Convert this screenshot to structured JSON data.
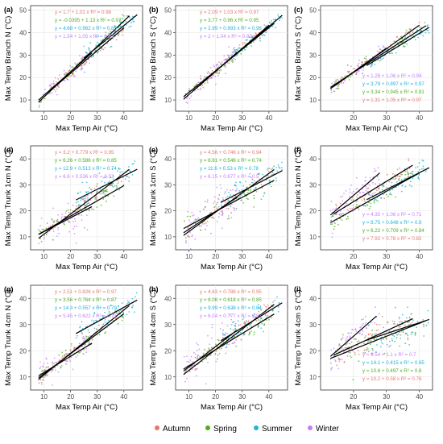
{
  "figure": {
    "legend": [
      {
        "name": "Autumn",
        "color": "#E8766C"
      },
      {
        "name": "Spring",
        "color": "#4DAF1E"
      },
      {
        "name": "Summer",
        "color": "#1FB3D8"
      },
      {
        "name": "Winter",
        "color": "#C77CFF"
      }
    ]
  },
  "chart_data": [
    {
      "type": "scatter",
      "panel": "(a)",
      "xlabel": "Max Temp Air (°C)",
      "ylabel": "Max Temp Branch N (°C)",
      "xlim": [
        5,
        47
      ],
      "ylim": [
        5,
        52
      ],
      "xticks": [
        10,
        20,
        30,
        40
      ],
      "yticks": [
        10,
        20,
        30,
        40,
        50
      ],
      "equations": [
        {
          "season": "Autumn",
          "text": "y = 1.7 + 1.01 x   R² = 0.98",
          "intercept": 1.7,
          "slope": 1.01,
          "r2": 0.98
        },
        {
          "season": "Spring",
          "text": "y = -0.0395 + 1.13 x   R² = 0.97",
          "intercept": -0.0395,
          "slope": 1.13,
          "r2": 0.97
        },
        {
          "season": "Summer",
          "text": "y = 4.68 + 0.962 x   R² = 0.85",
          "intercept": 4.68,
          "slope": 0.962,
          "r2": 0.85
        },
        {
          "season": "Winter",
          "text": "y = 1.54 + 1.05 x   R² = 0.83",
          "intercept": 1.54,
          "slope": 1.05,
          "r2": 0.83
        }
      ],
      "series": [
        {
          "name": "Autumn",
          "x_range": [
            12,
            40
          ]
        },
        {
          "name": "Spring",
          "x_range": [
            8,
            42
          ]
        },
        {
          "name": "Summer",
          "x_range": [
            25,
            45
          ]
        },
        {
          "name": "Winter",
          "x_range": [
            8,
            28
          ]
        }
      ]
    },
    {
      "type": "scatter",
      "panel": "(b)",
      "xlabel": "Max Temp Air (°C)",
      "ylabel": "Max Temp Branch S (°C)",
      "xlim": [
        5,
        47
      ],
      "ylim": [
        5,
        52
      ],
      "xticks": [
        10,
        20,
        30,
        40
      ],
      "yticks": [
        10,
        20,
        30,
        40,
        50
      ],
      "equations": [
        {
          "season": "Autumn",
          "text": "y = 2.09 + 1.03 x   R² = 0.97",
          "intercept": 2.09,
          "slope": 1.03,
          "r2": 0.97
        },
        {
          "season": "Spring",
          "text": "y = 3.77 + 0.96 x   R² = 0.95",
          "intercept": 3.77,
          "slope": 0.96,
          "r2": 0.95
        },
        {
          "season": "Summer",
          "text": "y = 2.99 + 0.993 x   R² = 0.98",
          "intercept": 2.99,
          "slope": 0.993,
          "r2": 0.98
        },
        {
          "season": "Winter",
          "text": "y = 2 + 1.04 x   R² = 0.83",
          "intercept": 2,
          "slope": 1.04,
          "r2": 0.83
        }
      ],
      "series": [
        {
          "name": "Autumn",
          "x_range": [
            12,
            40
          ]
        },
        {
          "name": "Spring",
          "x_range": [
            8,
            42
          ]
        },
        {
          "name": "Summer",
          "x_range": [
            25,
            45
          ]
        },
        {
          "name": "Winter",
          "x_range": [
            8,
            28
          ]
        }
      ]
    },
    {
      "type": "scatter",
      "panel": "(c)",
      "xlabel": "Max Temp Air (°C)",
      "ylabel": "Max Temp Branch S (°C)",
      "xlim": [
        10,
        44
      ],
      "ylim": [
        5,
        52
      ],
      "xticks": [
        20,
        30,
        40
      ],
      "yticks": [
        10,
        20,
        30,
        40,
        50
      ],
      "equations": [
        {
          "season": "Winter",
          "text": "y = 1.28 + 1.06 x   R² = 0.94",
          "intercept": 1.28,
          "slope": 1.06,
          "r2": 0.94
        },
        {
          "season": "Summer",
          "text": "y = 3.79 + 0.897 x   R² = 0.97",
          "intercept": 3.79,
          "slope": 0.897,
          "r2": 0.97
        },
        {
          "season": "Spring",
          "text": "y = 3.34 + 0.945 x   R² = 0.91",
          "intercept": 3.34,
          "slope": 0.945,
          "r2": 0.91
        },
        {
          "season": "Autumn",
          "text": "y = 1.31 + 1.05 x   R² = 0.97",
          "intercept": 1.31,
          "slope": 1.05,
          "r2": 0.97
        }
      ],
      "series": [
        {
          "name": "Autumn",
          "x_range": [
            14,
            40
          ]
        },
        {
          "name": "Spring",
          "x_range": [
            13,
            42
          ]
        },
        {
          "name": "Summer",
          "x_range": [
            24,
            43
          ]
        },
        {
          "name": "Winter",
          "x_range": [
            13,
            30
          ]
        }
      ]
    },
    {
      "type": "scatter",
      "panel": "(d)",
      "xlabel": "Max Temp Air (°C)",
      "ylabel": "Max Temp Trunk 1cm N (°C)",
      "xlim": [
        5,
        47
      ],
      "ylim": [
        5,
        45
      ],
      "xticks": [
        10,
        20,
        30,
        40
      ],
      "yticks": [
        10,
        20,
        30,
        40
      ],
      "equations": [
        {
          "season": "Autumn",
          "text": "y = 3.2 + 0.779 x   R² = 0.95",
          "intercept": 3.2,
          "slope": 0.779,
          "r2": 0.95
        },
        {
          "season": "Spring",
          "text": "y = 6.26 + 0.586 x   R² = 0.85",
          "intercept": 6.26,
          "slope": 0.586,
          "r2": 0.85
        },
        {
          "season": "Summer",
          "text": "y = 12.9 + 0.513 x   R² = 0.74",
          "intercept": 12.9,
          "slope": 0.513,
          "r2": 0.74
        },
        {
          "season": "Winter",
          "text": "y = 6.6 + 0.536 x   R² = 0.53",
          "intercept": 6.6,
          "slope": 0.536,
          "r2": 0.53
        }
      ],
      "series": [
        {
          "name": "Autumn",
          "x_range": [
            8,
            42
          ]
        },
        {
          "name": "Spring",
          "x_range": [
            8,
            40
          ]
        },
        {
          "name": "Summer",
          "x_range": [
            22,
            45
          ]
        },
        {
          "name": "Winter",
          "x_range": [
            8,
            28
          ]
        }
      ]
    },
    {
      "type": "scatter",
      "panel": "(e)",
      "xlabel": "Max Temp Air (°C)",
      "ylabel": "Max Temp Trunk 1cm S (°C)",
      "xlim": [
        5,
        47
      ],
      "ylim": [
        5,
        45
      ],
      "xticks": [
        10,
        20,
        30,
        40
      ],
      "yticks": [
        10,
        20,
        30,
        40
      ],
      "equations": [
        {
          "season": "Autumn",
          "text": "y = 4.56 + 0.746 x   R² = 0.94",
          "intercept": 4.56,
          "slope": 0.746,
          "r2": 0.94
        },
        {
          "season": "Spring",
          "text": "y = 8.81 + 0.546 x   R² = 0.74",
          "intercept": 8.81,
          "slope": 0.546,
          "r2": 0.74
        },
        {
          "season": "Summer",
          "text": "y = 11.6 + 0.53 x   R² = 0.78",
          "intercept": 11.6,
          "slope": 0.53,
          "r2": 0.78
        },
        {
          "season": "Winter",
          "text": "y = 6.15 + 0.677 x   R² = 0.5",
          "intercept": 6.15,
          "slope": 0.677,
          "r2": 0.5
        }
      ],
      "series": [
        {
          "name": "Autumn",
          "x_range": [
            8,
            42
          ]
        },
        {
          "name": "Spring",
          "x_range": [
            8,
            42
          ]
        },
        {
          "name": "Summer",
          "x_range": [
            22,
            45
          ]
        },
        {
          "name": "Winter",
          "x_range": [
            8,
            28
          ]
        }
      ]
    },
    {
      "type": "scatter",
      "panel": "(f)",
      "xlabel": "Max Temp Air (°C)",
      "ylabel": "Max Temp Trunk 1cm N (°C)",
      "xlim": [
        10,
        44
      ],
      "ylim": [
        5,
        45
      ],
      "xticks": [
        20,
        30,
        40
      ],
      "yticks": [
        10,
        20,
        30,
        40
      ],
      "equations": [
        {
          "season": "Winter",
          "text": "y = 4.35 + 1.08 x   R² = 0.71",
          "intercept": 4.35,
          "slope": 1.08,
          "r2": 0.71
        },
        {
          "season": "Summer",
          "text": "y = 8.75 + 0.648 x   R² = 0.9",
          "intercept": 8.75,
          "slope": 0.648,
          "r2": 0.9
        },
        {
          "season": "Spring",
          "text": "y = 6.22 + 0.709 x   R² = 0.84",
          "intercept": 6.22,
          "slope": 0.709,
          "r2": 0.84
        },
        {
          "season": "Autumn",
          "text": "y = 7.92 + 0.78 x   R² = 0.82",
          "intercept": 7.92,
          "slope": 0.78,
          "r2": 0.82
        }
      ],
      "series": [
        {
          "name": "Autumn",
          "x_range": [
            14,
            38
          ]
        },
        {
          "name": "Spring",
          "x_range": [
            13,
            40
          ]
        },
        {
          "name": "Summer",
          "x_range": [
            24,
            43
          ]
        },
        {
          "name": "Winter",
          "x_range": [
            13,
            28
          ]
        }
      ]
    },
    {
      "type": "scatter",
      "panel": "(g)",
      "xlabel": "Max Temp Air (°C)",
      "ylabel": "Max Temp Trunk 4cm N (°C)",
      "xlim": [
        5,
        47
      ],
      "ylim": [
        5,
        45
      ],
      "xticks": [
        10,
        20,
        30,
        40
      ],
      "yticks": [
        10,
        20,
        30,
        40
      ],
      "equations": [
        {
          "season": "Autumn",
          "text": "y = 2.51 + 0.826 x   R² = 0.97",
          "intercept": 2.51,
          "slope": 0.826,
          "r2": 0.97
        },
        {
          "season": "Spring",
          "text": "y = 3.56 + 0.764 x   R² = 0.87",
          "intercept": 3.56,
          "slope": 0.764,
          "r2": 0.87
        },
        {
          "season": "Summer",
          "text": "y = 14.3 + 0.557 x   R² = 0.79",
          "intercept": 14.3,
          "slope": 0.557,
          "r2": 0.79
        },
        {
          "season": "Winter",
          "text": "y = 5.45 + 0.622 x   R² = 0.71",
          "intercept": 5.45,
          "slope": 0.622,
          "r2": 0.71
        }
      ],
      "series": [
        {
          "name": "Autumn",
          "x_range": [
            8,
            42
          ]
        },
        {
          "name": "Spring",
          "x_range": [
            8,
            40
          ]
        },
        {
          "name": "Summer",
          "x_range": [
            22,
            45
          ]
        },
        {
          "name": "Winter",
          "x_range": [
            8,
            28
          ]
        }
      ]
    },
    {
      "type": "scatter",
      "panel": "(h)",
      "xlabel": "Max Temp Air (°C)",
      "ylabel": "Max Temp Trunk 4cm S (°C)",
      "xlim": [
        5,
        47
      ],
      "ylim": [
        5,
        45
      ],
      "xticks": [
        10,
        20,
        30,
        40
      ],
      "yticks": [
        10,
        20,
        30,
        40
      ],
      "equations": [
        {
          "season": "Autumn",
          "text": "y = 4.63 + 0.788 x   R² = 0.95",
          "intercept": 4.63,
          "slope": 0.788,
          "r2": 0.95
        },
        {
          "season": "Spring",
          "text": "y = 8.06 + 0.618 x   R² = 0.85",
          "intercept": 8.06,
          "slope": 0.618,
          "r2": 0.85
        },
        {
          "season": "Summer",
          "text": "y = 9.99 + 0.629 x   R² = 0.84",
          "intercept": 9.99,
          "slope": 0.629,
          "r2": 0.84
        },
        {
          "season": "Winter",
          "text": "y = 6.04 + 0.777 x   R² = 0.53",
          "intercept": 6.04,
          "slope": 0.777,
          "r2": 0.53
        }
      ],
      "series": [
        {
          "name": "Autumn",
          "x_range": [
            8,
            42
          ]
        },
        {
          "name": "Spring",
          "x_range": [
            8,
            42
          ]
        },
        {
          "name": "Summer",
          "x_range": [
            22,
            45
          ]
        },
        {
          "name": "Winter",
          "x_range": [
            8,
            28
          ]
        }
      ]
    },
    {
      "type": "scatter",
      "panel": "(i)",
      "xlabel": "Max Temp Air (°C)",
      "ylabel": "Max Temp Trunk 4cm S (°C)",
      "xlim": [
        10,
        44
      ],
      "ylim": [
        5,
        45
      ],
      "xticks": [
        20,
        30,
        40
      ],
      "yticks": [
        10,
        20,
        30,
        40
      ],
      "equations": [
        {
          "season": "Winter",
          "text": "y = 3.54 + 1.1 x   R² = 0.7",
          "intercept": 3.54,
          "slope": 1.1,
          "r2": 0.7
        },
        {
          "season": "Summer",
          "text": "y = 14.1 + 0.415 x   R² = 0.65",
          "intercept": 14.1,
          "slope": 0.415,
          "r2": 0.65
        },
        {
          "season": "Spring",
          "text": "y = 10.6 + 0.497 x   R² = 0.6",
          "intercept": 10.6,
          "slope": 0.497,
          "r2": 0.6
        },
        {
          "season": "Autumn",
          "text": "y = 10.2 + 0.58 x   R² = 0.76",
          "intercept": 10.2,
          "slope": 0.58,
          "r2": 0.76
        }
      ],
      "series": [
        {
          "name": "Autumn",
          "x_range": [
            14,
            38
          ]
        },
        {
          "name": "Spring",
          "x_range": [
            13,
            42
          ]
        },
        {
          "name": "Summer",
          "x_range": [
            24,
            43
          ]
        },
        {
          "name": "Winter",
          "x_range": [
            13,
            27
          ]
        }
      ]
    }
  ]
}
